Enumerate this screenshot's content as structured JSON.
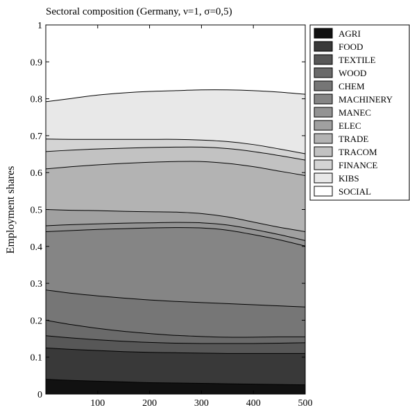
{
  "chart_data": {
    "type": "area",
    "stacked": true,
    "title": "Sectoral composition (Germany, ν=1, σ=0,5)",
    "xlabel": "",
    "ylabel": "Employment shares",
    "xlim": [
      0,
      500
    ],
    "ylim": [
      0,
      1
    ],
    "xticks": [
      100,
      200,
      300,
      400,
      500
    ],
    "yticks": [
      0,
      0.1,
      0.2,
      0.3,
      0.4,
      0.5,
      0.6,
      0.7,
      0.8,
      0.9,
      1
    ],
    "ytick_labels": [
      "0",
      "0.1",
      "0.2",
      "0.3",
      "0.4",
      "0.5",
      "0.6",
      "0.7",
      "0.8",
      "0.9",
      "1"
    ],
    "grid": false,
    "legend_position": "right",
    "x": [
      0,
      50,
      100,
      150,
      200,
      250,
      300,
      350,
      400,
      450,
      500
    ],
    "cumulative_boundaries": [
      {
        "name": "AGRI",
        "color": "#111111",
        "values": [
          0.04,
          0.037,
          0.035,
          0.033,
          0.031,
          0.03,
          0.029,
          0.028,
          0.027,
          0.026,
          0.025
        ]
      },
      {
        "name": "FOOD",
        "color": "#393939",
        "values": [
          0.125,
          0.121,
          0.118,
          0.115,
          0.113,
          0.112,
          0.111,
          0.11,
          0.11,
          0.11,
          0.11
        ]
      },
      {
        "name": "TEXTILE",
        "color": "#575757",
        "values": [
          0.158,
          0.152,
          0.147,
          0.143,
          0.14,
          0.138,
          0.137,
          0.137,
          0.137,
          0.138,
          0.139
        ]
      },
      {
        "name": "WOOD",
        "color": "#6a6a6a",
        "values": [
          0.2,
          0.188,
          0.178,
          0.17,
          0.164,
          0.159,
          0.156,
          0.154,
          0.154,
          0.155,
          0.155
        ]
      },
      {
        "name": "CHEM",
        "color": "#767676",
        "values": [
          0.282,
          0.273,
          0.266,
          0.26,
          0.255,
          0.251,
          0.248,
          0.245,
          0.242,
          0.239,
          0.236
        ]
      },
      {
        "name": "MACHINERY",
        "color": "#858585",
        "values": [
          0.44,
          0.443,
          0.446,
          0.448,
          0.45,
          0.451,
          0.45,
          0.444,
          0.432,
          0.418,
          0.401
        ]
      },
      {
        "name": "MANEC",
        "color": "#939393",
        "values": [
          0.456,
          0.459,
          0.461,
          0.463,
          0.464,
          0.465,
          0.464,
          0.458,
          0.446,
          0.432,
          0.416
        ]
      },
      {
        "name": "ELEC",
        "color": "#a0a0a0",
        "values": [
          0.5,
          0.498,
          0.497,
          0.495,
          0.494,
          0.493,
          0.489,
          0.48,
          0.466,
          0.452,
          0.44
        ]
      },
      {
        "name": "TRADE",
        "color": "#b3b3b3",
        "values": [
          0.61,
          0.616,
          0.621,
          0.625,
          0.628,
          0.63,
          0.63,
          0.625,
          0.616,
          0.604,
          0.592
        ]
      },
      {
        "name": "TRACOM",
        "color": "#c2c2c2",
        "values": [
          0.657,
          0.661,
          0.664,
          0.666,
          0.668,
          0.669,
          0.669,
          0.665,
          0.657,
          0.646,
          0.634
        ]
      },
      {
        "name": "FINANCE",
        "color": "#d4d4d4",
        "values": [
          0.691,
          0.69,
          0.69,
          0.69,
          0.69,
          0.69,
          0.688,
          0.684,
          0.676,
          0.664,
          0.651
        ]
      },
      {
        "name": "KIBS",
        "color": "#e8e8e8",
        "values": [
          0.792,
          0.801,
          0.81,
          0.816,
          0.82,
          0.822,
          0.824,
          0.824,
          0.822,
          0.818,
          0.812
        ]
      },
      {
        "name": "SOCIAL",
        "color": "#ffffff",
        "values": [
          1,
          1,
          1,
          1,
          1,
          1,
          1,
          1,
          1,
          1,
          1
        ]
      }
    ]
  }
}
